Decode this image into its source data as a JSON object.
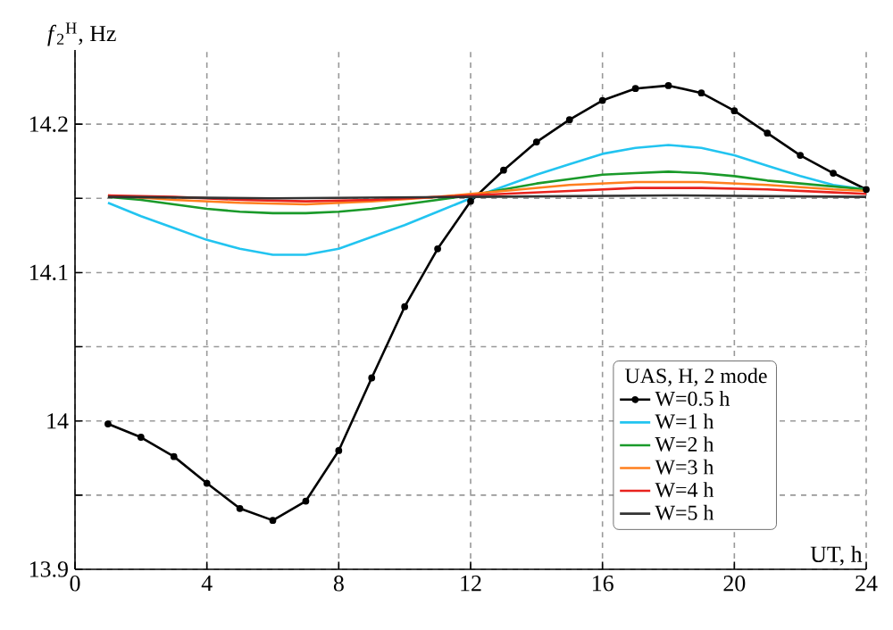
{
  "chart_data": {
    "type": "line",
    "xlabel": "UT, h",
    "ylabel": "*f*$_{2}$$^{H}$, Hz",
    "legend_title": "UAS, H, 2 mode",
    "xlim": [
      0,
      24
    ],
    "xticks": [
      0,
      4,
      8,
      12,
      16,
      20,
      24
    ],
    "ylim": [
      13.9,
      14.25
    ],
    "yticks": [
      13.9,
      {
        "value": 13.95,
        "label": null
      },
      14,
      {
        "value": 14.05,
        "label": null
      },
      14.1,
      {
        "value": 14.15,
        "label": null
      },
      14.2
    ],
    "grid": true,
    "legend": "bottom right",
    "line_style": "solid",
    "series": [
      {
        "name": "W=0.5 h",
        "color": "#000000",
        "marker": "circle",
        "x": [
          1,
          2,
          3,
          4,
          5,
          6,
          7,
          8,
          9,
          10,
          11,
          12,
          13,
          14,
          15,
          16,
          17,
          18,
          19,
          20,
          21,
          22,
          23,
          24
        ],
        "values": [
          13.998,
          13.989,
          13.976,
          13.958,
          13.941,
          13.933,
          13.946,
          13.98,
          14.029,
          14.077,
          14.116,
          14.148,
          14.169,
          14.188,
          14.203,
          14.216,
          14.224,
          14.226,
          14.221,
          14.209,
          14.194,
          14.179,
          14.167,
          14.156
        ]
      },
      {
        "name": "W=1 h",
        "color": "#22c4f0",
        "x": [
          1,
          2,
          3,
          4,
          5,
          6,
          7,
          8,
          9,
          10,
          11,
          12,
          13,
          14,
          15,
          16,
          17,
          18,
          19,
          20,
          21,
          22,
          23,
          24
        ],
        "values": [
          14.147,
          14.138,
          14.13,
          14.122,
          14.116,
          14.112,
          14.112,
          14.116,
          14.124,
          14.132,
          14.141,
          14.15,
          14.158,
          14.166,
          14.173,
          14.18,
          14.184,
          14.186,
          14.184,
          14.179,
          14.172,
          14.165,
          14.159,
          14.156
        ]
      },
      {
        "name": "W=2 h",
        "color": "#1a9a2a",
        "x": [
          1,
          2,
          3,
          4,
          5,
          6,
          7,
          8,
          9,
          10,
          11,
          12,
          13,
          14,
          15,
          16,
          17,
          18,
          19,
          20,
          21,
          22,
          23,
          24
        ],
        "values": [
          14.151,
          14.149,
          14.146,
          14.143,
          14.141,
          14.14,
          14.14,
          14.141,
          14.143,
          14.146,
          14.149,
          14.152,
          14.156,
          14.16,
          14.163,
          14.166,
          14.167,
          14.168,
          14.167,
          14.165,
          14.162,
          14.16,
          14.158,
          14.156
        ]
      },
      {
        "name": "W=3 h",
        "color": "#ff7f1e",
        "x": [
          1,
          3,
          5,
          7,
          9,
          11,
          13,
          15,
          17,
          18,
          19,
          21,
          23,
          24
        ],
        "values": [
          14.152,
          14.149,
          14.147,
          14.146,
          14.148,
          14.151,
          14.155,
          14.159,
          14.161,
          14.161,
          14.161,
          14.159,
          14.156,
          14.155
        ]
      },
      {
        "name": "W=4 h",
        "color": "#e8231e",
        "x": [
          1,
          3,
          5,
          7,
          9,
          11,
          13,
          15,
          17,
          18,
          19,
          21,
          23,
          24
        ],
        "values": [
          14.152,
          14.151,
          14.149,
          14.148,
          14.149,
          14.151,
          14.153,
          14.155,
          14.157,
          14.157,
          14.157,
          14.156,
          14.154,
          14.153
        ]
      },
      {
        "name": "W=5 h",
        "color": "#333333",
        "x": [
          1,
          6,
          12,
          18,
          24
        ],
        "values": [
          14.151,
          14.15,
          14.151,
          14.152,
          14.151
        ]
      }
    ]
  }
}
